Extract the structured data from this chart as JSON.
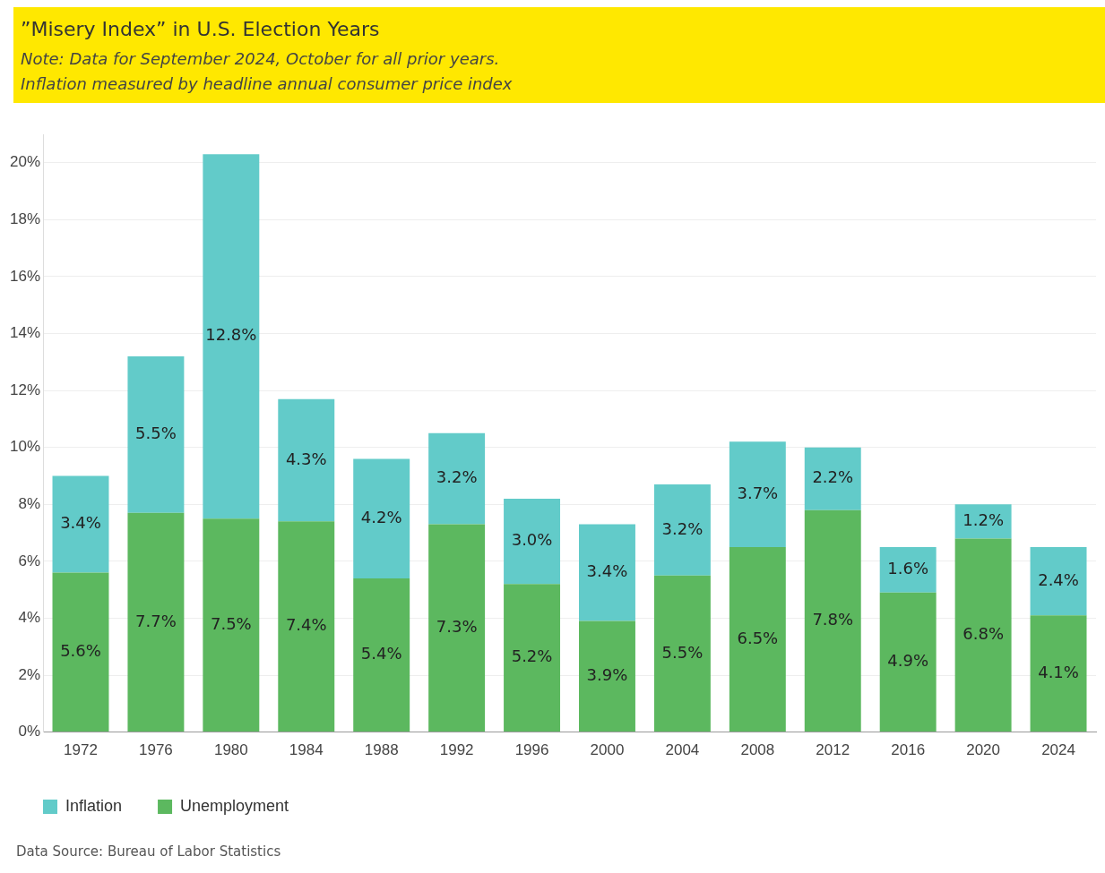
{
  "chart_data": {
    "type": "bar",
    "title": "”Misery Index” in U.S. Election Years",
    "subtitle": "Note: Data for September 2024, October for all prior years.\nInflation measured by headline annual consumer price index",
    "categories": [
      "1972",
      "1976",
      "1980",
      "1984",
      "1988",
      "1992",
      "1996",
      "2000",
      "2004",
      "2008",
      "2012",
      "2016",
      "2020",
      "2024"
    ],
    "stacked": true,
    "series": [
      {
        "name": "Unemployment",
        "color": "#5cb85f",
        "values": [
          5.6,
          7.7,
          7.5,
          7.4,
          5.4,
          7.3,
          5.2,
          3.9,
          5.5,
          6.5,
          7.8,
          4.9,
          6.8,
          4.1
        ],
        "value_labels": [
          "5.6%",
          "7.7%",
          "7.5%",
          "7.4%",
          "5.4%",
          "7.3%",
          "5.2%",
          "3.9%",
          "5.5%",
          "6.5%",
          "7.8%",
          "4.9%",
          "6.8%",
          "4.1%"
        ]
      },
      {
        "name": "Inflation",
        "color": "#62cbc9",
        "values": [
          3.4,
          5.5,
          12.8,
          4.3,
          4.2,
          3.2,
          3.0,
          3.4,
          3.2,
          3.7,
          2.2,
          1.6,
          1.2,
          2.4
        ],
        "value_labels": [
          "3.4%",
          "5.5%",
          "12.8%",
          "4.3%",
          "4.2%",
          "3.2%",
          "3.0%",
          "3.4%",
          "3.2%",
          "3.7%",
          "2.2%",
          "1.6%",
          "1.2%",
          "2.4%"
        ]
      }
    ],
    "ylim": [
      0,
      21
    ],
    "yticks": [
      {
        "value": 0,
        "label": "0%"
      },
      {
        "value": 2,
        "label": "2%"
      },
      {
        "value": 4,
        "label": "4%"
      },
      {
        "value": 6,
        "label": "6%"
      },
      {
        "value": 8,
        "label": "8%"
      },
      {
        "value": 10,
        "label": "10%"
      },
      {
        "value": 12,
        "label": "12%"
      },
      {
        "value": 14,
        "label": "14%"
      },
      {
        "value": 16,
        "label": "16%"
      },
      {
        "value": 18,
        "label": "18%"
      },
      {
        "value": 20,
        "label": "20%"
      }
    ],
    "grid": "y",
    "legend": "bottom left",
    "annotations": [
      "Data Source: Bureau of Labor Statistics"
    ]
  }
}
